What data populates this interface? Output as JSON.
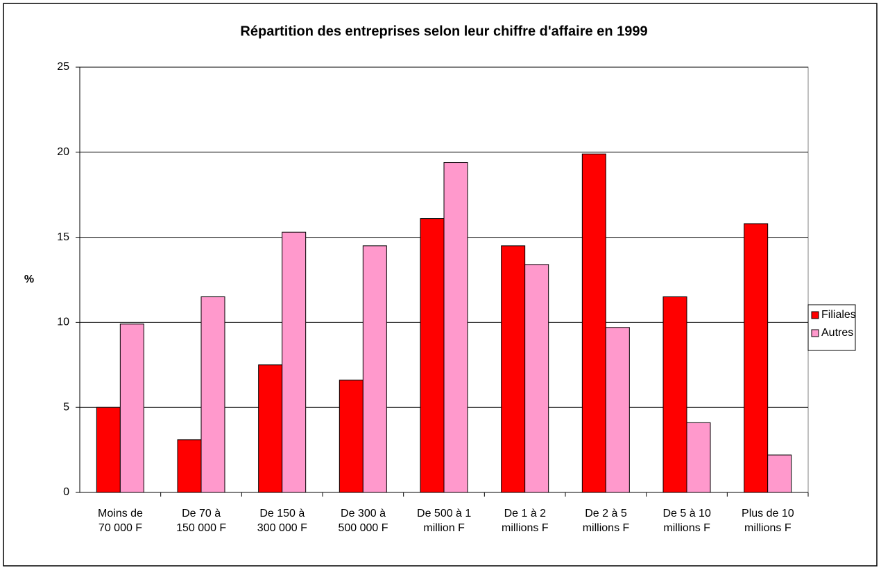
{
  "chart_data": {
    "type": "bar",
    "title": "Répartition des entreprises selon leur chiffre d'affaire en 1999",
    "y_label": "%",
    "categories": [
      "Moins de\n70 000 F",
      "De 70 à\n150 000 F",
      "De 150 à\n300 000 F",
      "De 300 à\n500 000 F",
      "De 500 à 1\nmillion F",
      "De 1 à 2\nmillions F",
      "De 2 à 5\nmillions F",
      "De 5 à 10\nmillions F",
      "Plus de 10\nmillions F"
    ],
    "series": [
      {
        "name": "Filiales",
        "color": "#ff0000",
        "values": [
          5.0,
          3.1,
          7.5,
          6.6,
          16.1,
          14.5,
          19.9,
          11.5,
          15.8
        ]
      },
      {
        "name": "Autres",
        "color": "#ff99cc",
        "values": [
          9.9,
          11.5,
          15.3,
          14.5,
          19.4,
          13.4,
          9.7,
          4.1,
          2.2
        ]
      }
    ],
    "ylim": [
      0,
      25
    ],
    "yticks": [
      0,
      5,
      10,
      15,
      20,
      25
    ],
    "grid": true,
    "legend": "right"
  }
}
